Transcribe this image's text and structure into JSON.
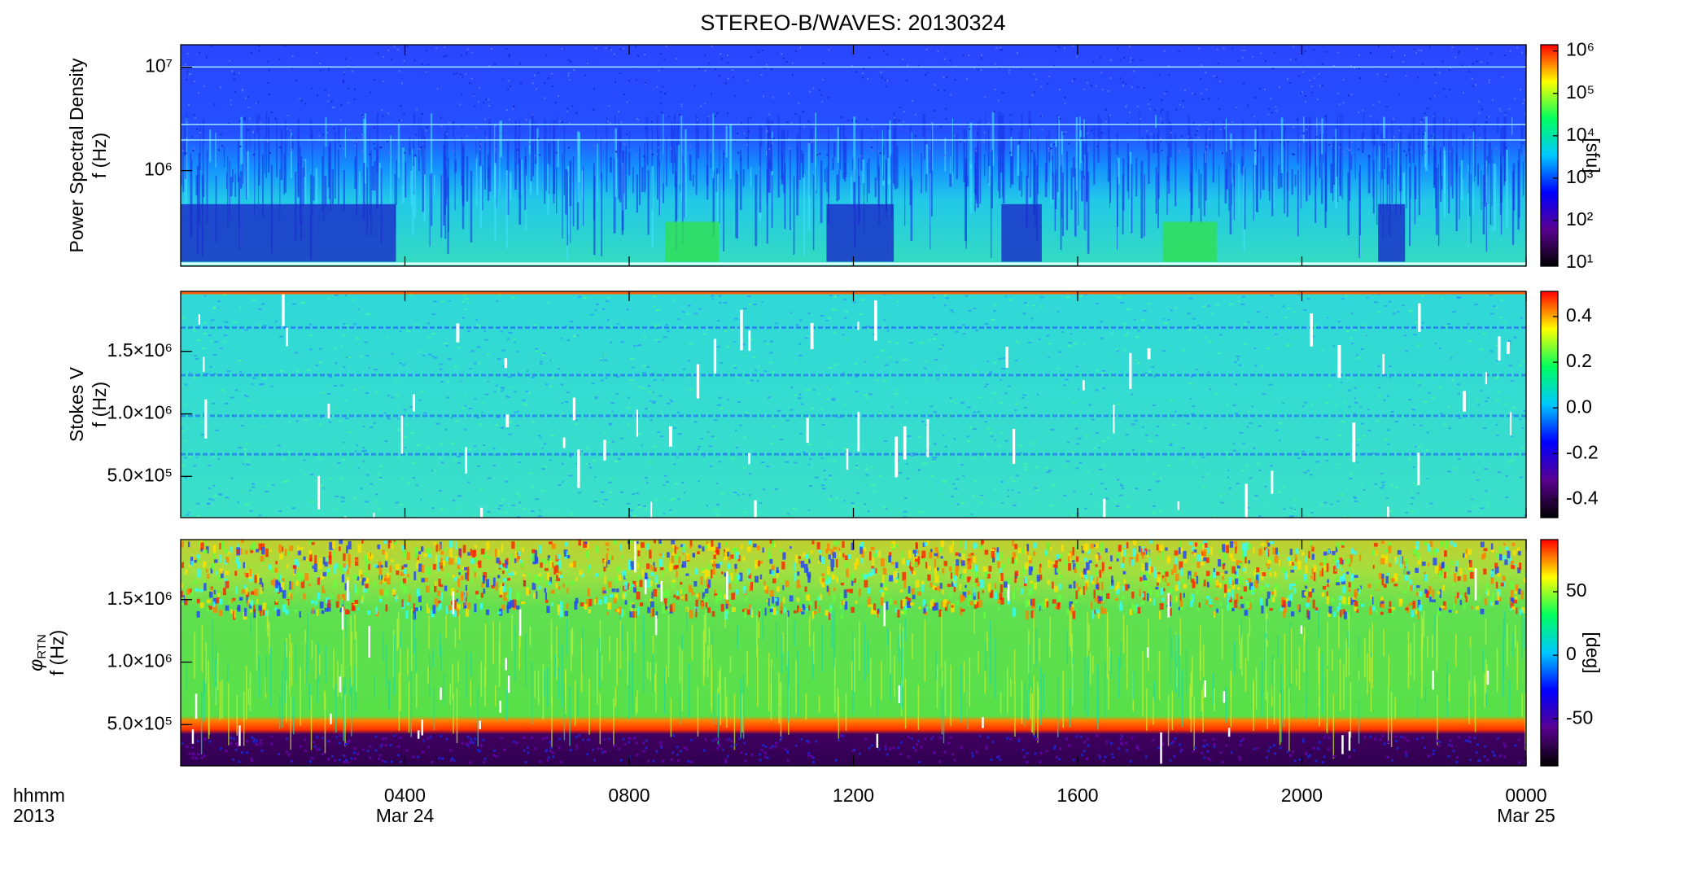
{
  "chart_data": [
    {
      "type": "spectrogram",
      "title": "STEREO-B/WAVES: 20130324",
      "ylabel": "Power Spectral Density",
      "ylabel2": "f (Hz)",
      "ylog": true,
      "ylim": [
        119000,
        16500000
      ],
      "yticks": [
        {
          "value": 1000000,
          "label": "10⁶"
        },
        {
          "value": 10000000,
          "label": "10⁷"
        }
      ],
      "clog": true,
      "clim": [
        8.4,
        1400000
      ],
      "cticks": [
        {
          "value": 10,
          "label": "10¹"
        },
        {
          "value": 100,
          "label": "10²"
        },
        {
          "value": 1000,
          "label": "10³"
        },
        {
          "value": 10000,
          "label": "10⁴"
        },
        {
          "value": 100000,
          "label": "10⁵"
        },
        {
          "value": 1000000,
          "label": "10⁶"
        }
      ],
      "clabel": "[sfu]",
      "colormap": [
        "#000000",
        "#5a0090",
        "#0000ff",
        "#00c8ff",
        "#00ff60",
        "#ffff00",
        "#ff0000"
      ]
    },
    {
      "type": "spectrogram",
      "ylabel": "Stokes V",
      "ylabel2": "f (Hz)",
      "ylog": false,
      "ylim": [
        170000,
        1980000
      ],
      "yticks": [
        {
          "value": 500000,
          "label": "5.0×10⁵"
        },
        {
          "value": 1000000,
          "label": "1.0×10⁶"
        },
        {
          "value": 1500000,
          "label": "1.5×10⁶"
        }
      ],
      "clog": false,
      "clim": [
        -0.48,
        0.51
      ],
      "cticks": [
        -0.4,
        -0.2,
        {
          "value": 0,
          "label": "0.0"
        },
        0.2,
        0.4
      ],
      "colormap": [
        "#000000",
        "#5a0090",
        "#0000ff",
        "#00c8ff",
        "#00ff60",
        "#ffff00",
        "#ff0000"
      ]
    },
    {
      "type": "spectrogram",
      "ylabel": "φ",
      "ylabel_subscript": "RTN",
      "ylabel2": "f (Hz)",
      "ylog": false,
      "ylim": [
        170000,
        1980000
      ],
      "yticks": [
        {
          "value": 500000,
          "label": "5.0×10⁵"
        },
        {
          "value": 1000000,
          "label": "1.0×10⁶"
        },
        {
          "value": 1500000,
          "label": "1.5×10⁶"
        }
      ],
      "clog": false,
      "clim": [
        -87,
        91
      ],
      "cticks": [
        -50,
        0,
        50
      ],
      "clabel": "[deg]",
      "colormap": [
        "#000000",
        "#5a0090",
        "#0000ff",
        "#00c8ff",
        "#00ff60",
        "#ffff00",
        "#ff0000"
      ],
      "xlabel": "hhmm",
      "xlabel2": "2013",
      "xlim": [
        0,
        24
      ],
      "xticks": [
        {
          "value": 4,
          "label": "0400"
        },
        {
          "value": 8,
          "label": "0800"
        },
        {
          "value": 12,
          "label": "1200"
        },
        {
          "value": 16,
          "label": "1600"
        },
        {
          "value": 20,
          "label": "2000"
        },
        {
          "value": 24,
          "label": "0000"
        }
      ],
      "xdates": [
        {
          "value": 4,
          "label": "Mar 24"
        },
        {
          "value": 24,
          "label": "Mar 25"
        }
      ]
    }
  ]
}
